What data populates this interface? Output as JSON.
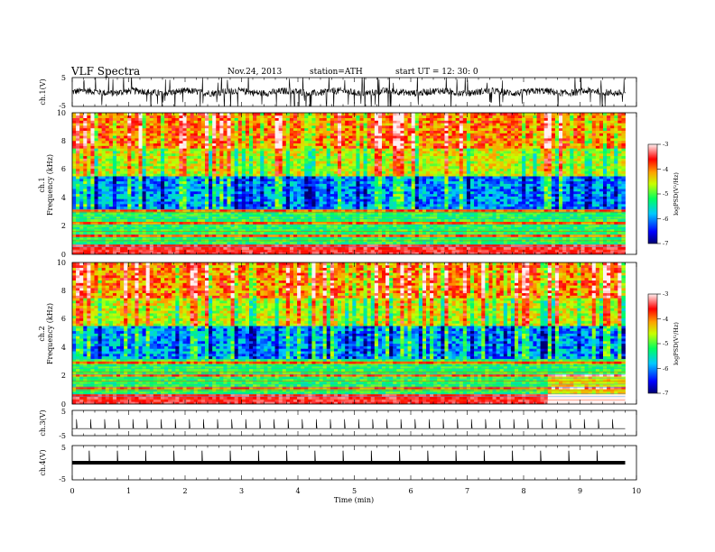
{
  "header": {
    "title": "VLF  Spectra",
    "date": "Nov.24, 2013",
    "station": "station=ATH",
    "start": "start  UT  =    12: 30: 0"
  },
  "chart_data": [
    {
      "type": "line",
      "panel": "ch1-waveform",
      "ylabel": "ch.1(V)",
      "ylim": [
        -5,
        5
      ],
      "yticks": [
        "5",
        "-5"
      ],
      "xlim": [
        0,
        10
      ],
      "baseline": 0,
      "description_level": "noisy VLF waveform with spikes"
    },
    {
      "type": "heatmap",
      "panel": "ch1-spectrogram",
      "ylabel_top": "ch.1",
      "ylabel": "Frequency  (kHz)",
      "ylim": [
        0,
        10
      ],
      "yticks": [
        "0",
        "2",
        "4",
        "6",
        "8",
        "10"
      ],
      "xlim": [
        0,
        10
      ],
      "data_end_min": 9.8,
      "colorbar": {
        "label": "logPSD(V²/Hz)",
        "range": [
          -7,
          -3
        ],
        "ticks": [
          "-3",
          "-4",
          "-5",
          "-6",
          "-7"
        ]
      }
    },
    {
      "type": "heatmap",
      "panel": "ch2-spectrogram",
      "ylabel_top": "ch.2",
      "ylabel": "Frequency  (kHz)",
      "ylim": [
        0,
        10
      ],
      "yticks": [
        "0",
        "2",
        "4",
        "6",
        "8",
        "10"
      ],
      "xlim": [
        0,
        10
      ],
      "data_end_min": 9.8,
      "step_change_min": 8.4,
      "colorbar": {
        "label": "logPSD(V²/Hz)",
        "range": [
          -7,
          -3
        ],
        "ticks": [
          "-3",
          "-4",
          "-5",
          "-6",
          "-7"
        ]
      }
    },
    {
      "type": "line",
      "panel": "ch3-waveform",
      "ylabel": "ch.3(V)",
      "ylim": [
        -5,
        5
      ],
      "yticks": [
        "5",
        "-5"
      ],
      "xlim": [
        0,
        10
      ],
      "pulse_interval_min": 0.25,
      "description_level": "flat trace near 0 with regular spikes"
    },
    {
      "type": "line",
      "panel": "ch4-waveform",
      "ylabel": "ch.4(V)",
      "ylim": [
        -5,
        5
      ],
      "yticks": [
        "5",
        "-5"
      ],
      "xlim": [
        0,
        10
      ],
      "pulse_interval_min": 0.5,
      "baseline": 0,
      "xlabel": "Time  (min)",
      "xticks": [
        "0",
        "1",
        "2",
        "3",
        "4",
        "5",
        "6",
        "7",
        "8",
        "9",
        "10"
      ]
    }
  ]
}
